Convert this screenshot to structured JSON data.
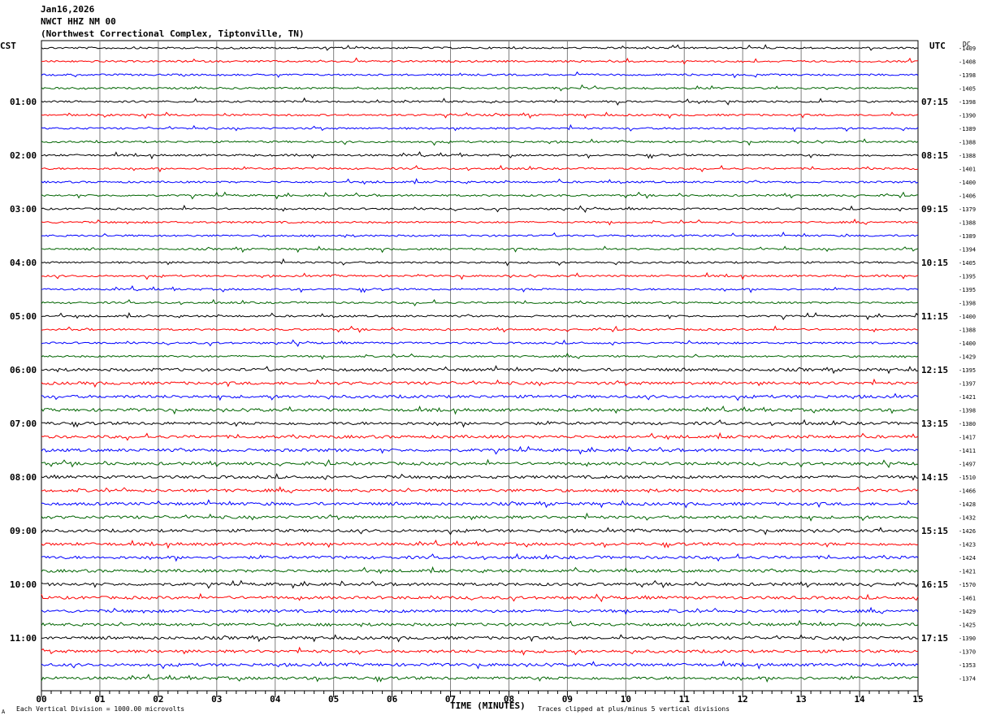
{
  "header": {
    "date": "Jan16,2026",
    "station": "NWCT HHZ NM 00",
    "location": "(Northwest Correctional Complex, Tiptonville, TN)"
  },
  "footer": {
    "scale_note": "Each Vertical Division = 1000.00 microvolts",
    "clip_note": "Traces clipped at plus/minus 5 vertical divisions",
    "corner_mark": "A"
  },
  "chart_data": {
    "type": "line",
    "title": "",
    "xlabel": "TIME (MINUTES)",
    "xlim": [
      0,
      15
    ],
    "x_ticks": [
      "00",
      "01",
      "02",
      "03",
      "04",
      "05",
      "06",
      "07",
      "08",
      "09",
      "10",
      "11",
      "12",
      "13",
      "14",
      "15"
    ],
    "left_axis_title": "CST",
    "right_axis_title": "UTC",
    "dc_title": "DC",
    "left_hour_labels": [
      "01:00",
      "02:00",
      "03:00",
      "04:00",
      "05:00",
      "06:00",
      "07:00",
      "08:00",
      "09:00",
      "10:00",
      "11:00"
    ],
    "right_hour_labels": [
      "07:15",
      "08:15",
      "09:15",
      "10:15",
      "11:15",
      "12:15",
      "13:15",
      "14:15",
      "15:15",
      "16:15",
      "17:15"
    ],
    "trace_colors": [
      "#000000",
      "#ff0000",
      "#0000ff",
      "#006400"
    ],
    "dc_offsets": [
      -1409,
      -1408,
      -1398,
      -1405,
      -1398,
      -1390,
      -1389,
      -1388,
      -1388,
      -1401,
      -1400,
      -1406,
      -1379,
      -1388,
      -1389,
      -1394,
      -1405,
      -1395,
      -1395,
      -1398,
      -1400,
      -1388,
      -1400,
      -1429,
      -1395,
      -1397,
      -1421,
      -1398,
      -1380,
      -1417,
      -1411,
      -1497,
      -1510,
      -1466,
      -1428,
      -1432,
      -1426,
      -1423,
      -1424,
      -1421,
      -1570,
      -1461,
      -1429,
      -1425,
      -1390,
      -1370,
      -1353,
      -1374
    ],
    "trace_count": 48
  }
}
